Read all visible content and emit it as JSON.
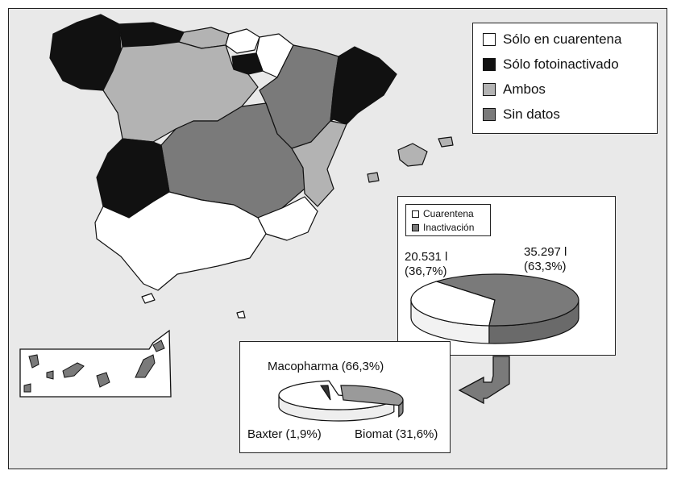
{
  "legend": {
    "items": [
      {
        "label": "Sólo en cuarentena",
        "color": "#ffffff"
      },
      {
        "label": "Sólo fotoinactivado",
        "color": "#111111"
      },
      {
        "label": "Ambos",
        "color": "#b3b3b3"
      },
      {
        "label": "Sin datos",
        "color": "#7a7a7a"
      }
    ]
  },
  "volume_pie": {
    "legend": [
      "Cuarentena",
      "Inactivación"
    ],
    "cuarentena_volume": "20.531 l",
    "cuarentena_pct": "(36,7%)",
    "inactivacion_volume": "35.297 l",
    "inactivacion_pct": "(63,3%)"
  },
  "brand_pie": {
    "macopharma": "Macopharma (66,3%)",
    "baxter": "Baxter (1,9%)",
    "biomat": "Biomat (31,6%)"
  },
  "chart_data": [
    {
      "type": "pie",
      "categories": [
        "Cuarentena",
        "Inactivación"
      ],
      "values": [
        36.7,
        63.3
      ],
      "volumes_l": [
        "20.531",
        "35.297"
      ],
      "legend": "top-left"
    },
    {
      "type": "pie",
      "categories": [
        "Macopharma",
        "Baxter",
        "Biomat"
      ],
      "values": [
        66.3,
        1.9,
        31.6
      ]
    }
  ]
}
